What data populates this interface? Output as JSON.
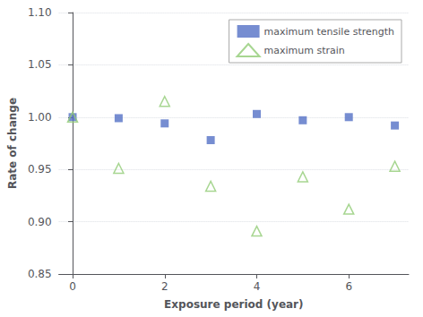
{
  "chart_data": {
    "type": "scatter",
    "xlabel": "Exposure period (year)",
    "ylabel": "Rate of change",
    "series": [
      {
        "name": "maximum tensile strength",
        "marker": "square",
        "x": [
          0,
          1,
          2,
          3,
          4,
          5,
          6,
          7
        ],
        "values": [
          1.0,
          0.999,
          0.994,
          0.978,
          1.003,
          0.997,
          1.0,
          0.992
        ]
      },
      {
        "name": "maximum strain",
        "marker": "triangle_open",
        "x": [
          0,
          1,
          2,
          3,
          4,
          5,
          6,
          7
        ],
        "values": [
          1.0,
          0.951,
          1.015,
          0.934,
          0.891,
          0.943,
          0.912,
          0.953
        ]
      }
    ],
    "xlim": [
      -0.3,
      7.3
    ],
    "xticks": [
      0,
      2,
      4,
      6
    ],
    "ylim": [
      0.85,
      1.1
    ],
    "yticks": [
      0.85,
      {
        "value": 0.9,
        "label": "0.90"
      },
      0.95,
      {
        "value": 1.0,
        "label": "1.00"
      },
      1.05,
      {
        "value": 1.1,
        "label": "1.10"
      }
    ],
    "grid": "y",
    "legend": "upper right"
  }
}
